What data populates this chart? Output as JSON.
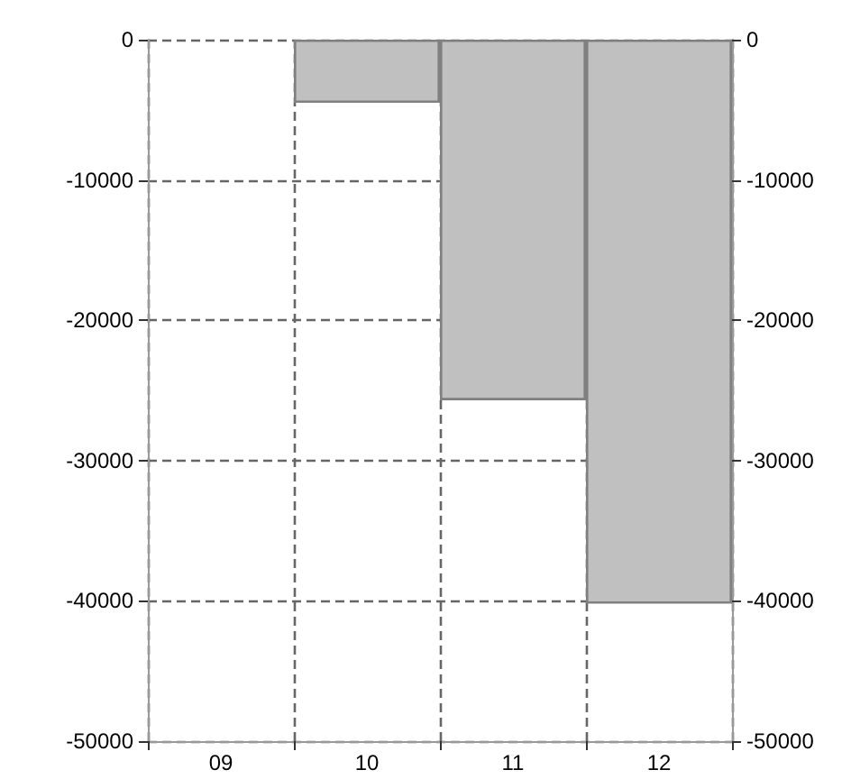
{
  "chart_data": {
    "type": "bar",
    "categories": [
      "09",
      "10",
      "11",
      "12"
    ],
    "values": [
      null,
      -4500,
      -25700,
      -40200
    ],
    "color": "#c0c0c0",
    "ylim": [
      -50000,
      0
    ],
    "yticks": [
      -50000,
      -40000,
      -30000,
      -20000,
      -10000,
      0
    ],
    "y2lim": [
      -50000,
      0
    ],
    "y2ticks": [
      -50000,
      -40000,
      -30000,
      -20000,
      -10000,
      0
    ],
    "grid": true
  }
}
